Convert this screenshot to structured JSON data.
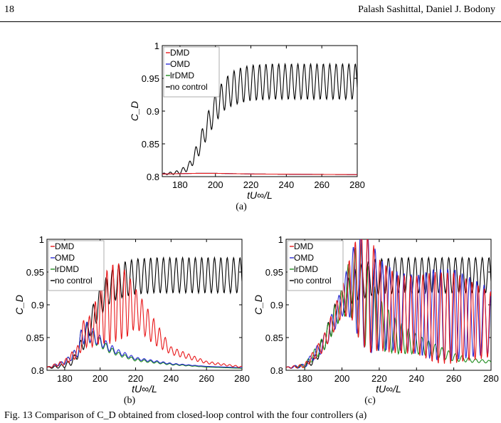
{
  "header": {
    "page_number": "18",
    "authors": "Palash Sashittal, Daniel J. Bodony"
  },
  "caption": "Fig. 13  Comparison of C_D obtained from closed-loop control with the four controllers (a)",
  "panels": [
    {
      "label": "(a)"
    },
    {
      "label": "(b)"
    },
    {
      "label": "(c)"
    }
  ],
  "chart_data": [
    {
      "type": "line",
      "panel": "(a)",
      "xlabel": "tU∞/L",
      "ylabel": "C_D",
      "xlim": [
        170,
        280
      ],
      "ylim": [
        0.8,
        1.0
      ],
      "xticks": [
        "180",
        "200",
        "220",
        "240",
        "260",
        "280"
      ],
      "yticks": [
        "0.8",
        "0.85",
        "0.9",
        "0.95",
        "1"
      ],
      "legend": {
        "position": "top-left",
        "entries": [
          "DMD",
          "OMD",
          "lrDMD",
          "no control"
        ]
      },
      "series": [
        {
          "name": "DMD",
          "color": "#e8191b",
          "x": [
            170,
            190,
            200,
            220,
            280
          ],
          "y": [
            0.804,
            0.805,
            0.805,
            0.804,
            0.803
          ]
        },
        {
          "name": "OMD",
          "color": "#2b2bd6",
          "x": [
            170,
            190,
            200,
            220,
            280
          ],
          "y": [
            0.804,
            0.805,
            0.805,
            0.804,
            0.803
          ]
        },
        {
          "name": "lrDMD",
          "color": "#1e8c1e",
          "x": [
            170,
            190,
            200,
            220,
            280
          ],
          "y": [
            0.804,
            0.805,
            0.805,
            0.804,
            0.803
          ]
        },
        {
          "name": "no control",
          "color": "#000000",
          "x": [
            170,
            175,
            180,
            185,
            190,
            195,
            200,
            205,
            210,
            215,
            220,
            230,
            240,
            260,
            280
          ],
          "y": [
            0.804,
            0.805,
            0.807,
            0.815,
            0.84,
            0.875,
            0.905,
            0.925,
            0.935,
            0.94,
            0.943,
            0.945,
            0.945,
            0.945,
            0.945
          ],
          "oscillation_amplitude": [
            0.001,
            0.002,
            0.003,
            0.006,
            0.012,
            0.018,
            0.022,
            0.024,
            0.026,
            0.027,
            0.027,
            0.027,
            0.027,
            0.027,
            0.027
          ],
          "oscillation_period": 3.6
        }
      ]
    },
    {
      "type": "line",
      "panel": "(b)",
      "xlabel": "tU∞/L",
      "ylabel": "C_D",
      "xlim": [
        170,
        280
      ],
      "ylim": [
        0.8,
        1.0
      ],
      "xticks": [
        "180",
        "200",
        "220",
        "240",
        "260",
        "280"
      ],
      "yticks": [
        "0.8",
        "0.85",
        "0.9",
        "0.95",
        "1"
      ],
      "legend": {
        "position": "top-left",
        "entries": [
          "DMD",
          "OMD",
          "lrDMD",
          "no control"
        ]
      },
      "series": [
        {
          "name": "DMD",
          "color": "#e8191b",
          "x": [
            170,
            180,
            188,
            190,
            195,
            200,
            205,
            210,
            215,
            220,
            230,
            240,
            260,
            280
          ],
          "y": [
            0.804,
            0.812,
            0.83,
            0.855,
            0.86,
            0.885,
            0.9,
            0.905,
            0.9,
            0.895,
            0.86,
            0.83,
            0.812,
            0.805
          ],
          "oscillation_amplitude": [
            0.001,
            0.004,
            0.01,
            0.02,
            0.025,
            0.045,
            0.06,
            0.06,
            0.05,
            0.03,
            0.02,
            0.006,
            0.002,
            0.001
          ],
          "oscillation_period": 3.3
        },
        {
          "name": "OMD",
          "color": "#2b2bd6",
          "x": [
            170,
            180,
            188,
            190,
            195,
            200,
            205,
            210,
            220,
            240,
            260,
            280
          ],
          "y": [
            0.804,
            0.812,
            0.83,
            0.86,
            0.855,
            0.845,
            0.835,
            0.828,
            0.818,
            0.81,
            0.806,
            0.804
          ],
          "oscillation_amplitude": [
            0.001,
            0.003,
            0.008,
            0.02,
            0.012,
            0.008,
            0.006,
            0.004,
            0.002,
            0.001,
            0.0,
            0.0
          ],
          "oscillation_period": 3.6
        },
        {
          "name": "lrDMD",
          "color": "#1e8c1e",
          "x": [
            170,
            180,
            188,
            190,
            195,
            200,
            205,
            210,
            220,
            240,
            260,
            280
          ],
          "y": [
            0.804,
            0.812,
            0.83,
            0.86,
            0.852,
            0.842,
            0.832,
            0.825,
            0.816,
            0.809,
            0.805,
            0.803
          ],
          "oscillation_amplitude": [
            0.001,
            0.003,
            0.008,
            0.02,
            0.01,
            0.007,
            0.005,
            0.003,
            0.002,
            0.001,
            0.0,
            0.0
          ],
          "oscillation_period": 3.6
        },
        {
          "name": "no control",
          "color": "#000000",
          "x": [
            170,
            175,
            180,
            185,
            190,
            195,
            200,
            205,
            210,
            215,
            220,
            230,
            240,
            260,
            280
          ],
          "y": [
            0.804,
            0.805,
            0.807,
            0.815,
            0.84,
            0.875,
            0.905,
            0.925,
            0.935,
            0.94,
            0.943,
            0.945,
            0.945,
            0.945,
            0.945
          ],
          "oscillation_amplitude": [
            0.001,
            0.002,
            0.003,
            0.006,
            0.012,
            0.018,
            0.022,
            0.024,
            0.026,
            0.027,
            0.027,
            0.027,
            0.027,
            0.027,
            0.027
          ],
          "oscillation_period": 3.6
        }
      ]
    },
    {
      "type": "line",
      "panel": "(c)",
      "xlabel": "tU∞/L",
      "ylabel": "C_D",
      "xlim": [
        170,
        280
      ],
      "ylim": [
        0.8,
        1.0
      ],
      "xticks": [
        "180",
        "200",
        "220",
        "240",
        "260",
        "280"
      ],
      "yticks": [
        "0.8",
        "0.85",
        "0.9",
        "0.95",
        "1"
      ],
      "legend": {
        "position": "top-left",
        "entries": [
          "DMD",
          "OMD",
          "lrDMD",
          "no control"
        ]
      },
      "series": [
        {
          "name": "DMD",
          "color": "#e8191b",
          "x": [
            170,
            180,
            190,
            200,
            205,
            210,
            215,
            220,
            230,
            240,
            250,
            260,
            270,
            280
          ],
          "y": [
            0.804,
            0.807,
            0.84,
            0.905,
            0.93,
            0.93,
            0.915,
            0.9,
            0.885,
            0.885,
            0.88,
            0.88,
            0.875,
            0.87
          ],
          "oscillation_amplitude": [
            0.001,
            0.003,
            0.012,
            0.022,
            0.05,
            0.09,
            0.09,
            0.07,
            0.06,
            0.06,
            0.07,
            0.07,
            0.06,
            0.05
          ],
          "oscillation_period": 3.3
        },
        {
          "name": "OMD",
          "color": "#2b2bd6",
          "x": [
            170,
            180,
            190,
            200,
            205,
            210,
            215,
            220,
            230,
            240,
            250,
            260,
            270,
            280
          ],
          "y": [
            0.804,
            0.807,
            0.84,
            0.905,
            0.93,
            0.93,
            0.915,
            0.9,
            0.89,
            0.885,
            0.885,
            0.885,
            0.88,
            0.875
          ],
          "oscillation_amplitude": [
            0.001,
            0.003,
            0.012,
            0.022,
            0.05,
            0.09,
            0.09,
            0.07,
            0.06,
            0.06,
            0.07,
            0.07,
            0.06,
            0.05
          ],
          "oscillation_period": 3.9
        },
        {
          "name": "lrDMD",
          "color": "#1e8c1e",
          "x": [
            170,
            180,
            190,
            200,
            205,
            210,
            215,
            220,
            230,
            240,
            250,
            260,
            270,
            280
          ],
          "y": [
            0.804,
            0.807,
            0.84,
            0.905,
            0.93,
            0.92,
            0.89,
            0.87,
            0.85,
            0.84,
            0.83,
            0.82,
            0.815,
            0.813
          ],
          "oscillation_amplitude": [
            0.001,
            0.003,
            0.012,
            0.022,
            0.05,
            0.08,
            0.06,
            0.04,
            0.025,
            0.015,
            0.01,
            0.006,
            0.003,
            0.002
          ],
          "oscillation_period": 3.6
        },
        {
          "name": "no control",
          "color": "#000000",
          "x": [
            170,
            175,
            180,
            185,
            190,
            195,
            200,
            205,
            210,
            215,
            220,
            230,
            240,
            260,
            280
          ],
          "y": [
            0.804,
            0.805,
            0.807,
            0.815,
            0.84,
            0.875,
            0.905,
            0.925,
            0.935,
            0.94,
            0.943,
            0.945,
            0.945,
            0.945,
            0.945
          ],
          "oscillation_amplitude": [
            0.001,
            0.002,
            0.003,
            0.006,
            0.012,
            0.018,
            0.022,
            0.024,
            0.026,
            0.027,
            0.027,
            0.027,
            0.027,
            0.027,
            0.027
          ],
          "oscillation_period": 3.6
        }
      ]
    }
  ]
}
